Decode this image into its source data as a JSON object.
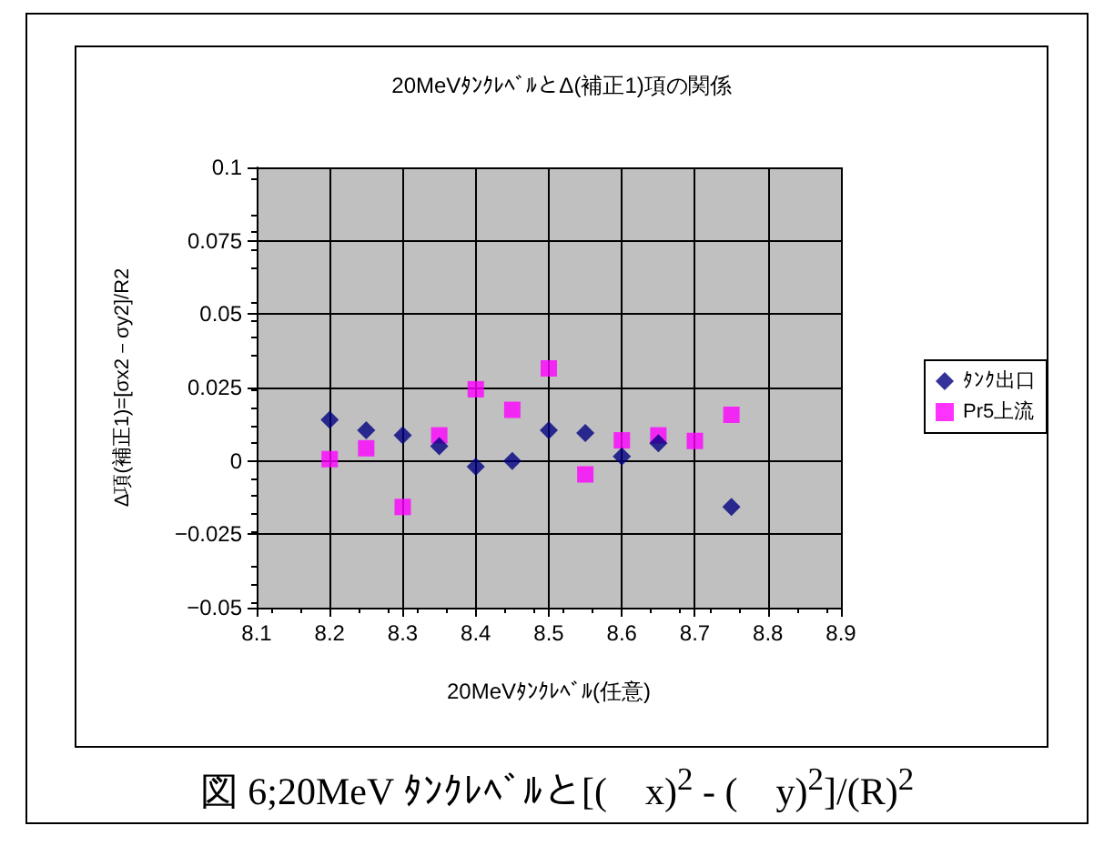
{
  "chart_data": {
    "type": "scatter",
    "title": "20MeVﾀﾝｸﾚﾍﾞﾙとΔ(補正1)項の関係",
    "xlabel": "20MeVﾀﾝｸﾚﾍﾞﾙ(任意)",
    "ylabel": "Δ項(補正1)=[σx2－σy2]/R2",
    "annotations": [
      "図 6;20MeV ﾀﾝｸﾚﾍﾞﾙと[(　x)$^{2}$ - (　y)$^{2}$]/(R)$^{2}$"
    ],
    "x": [
      8.2,
      8.25,
      8.3,
      8.35,
      8.4,
      8.45,
      8.5,
      8.55,
      8.6,
      8.65,
      8.7,
      8.75
    ],
    "series": [
      {
        "name": "ﾀﾝｸ出口",
        "color": "#000080",
        "marker": "diamond",
        "values": [
          0.014,
          0.0104,
          0.0087,
          0.005,
          -0.002,
          0,
          0.0104,
          0.0095,
          0.0015,
          0.006,
          null,
          -0.0157
        ]
      },
      {
        "name": "Pr5上流",
        "color": "#ff00ff",
        "marker": "square",
        "values": [
          0.0006,
          0.0043,
          -0.0157,
          0.0087,
          0.0244,
          0.0174,
          0.0315,
          -0.0046,
          0.007,
          0.0087,
          0.0068,
          0.0157
        ]
      }
    ],
    "xlim": [
      8.1,
      8.9
    ],
    "xticks": [
      8.1,
      8.2,
      8.3,
      8.4,
      8.5,
      8.6,
      8.7,
      8.8,
      8.9
    ],
    "ylim": [
      -0.05,
      0.1
    ],
    "yticks": [
      -0.05,
      -0.025,
      0,
      0.025,
      0.05,
      0.075,
      0.1
    ],
    "grid": true,
    "legend": "right"
  }
}
